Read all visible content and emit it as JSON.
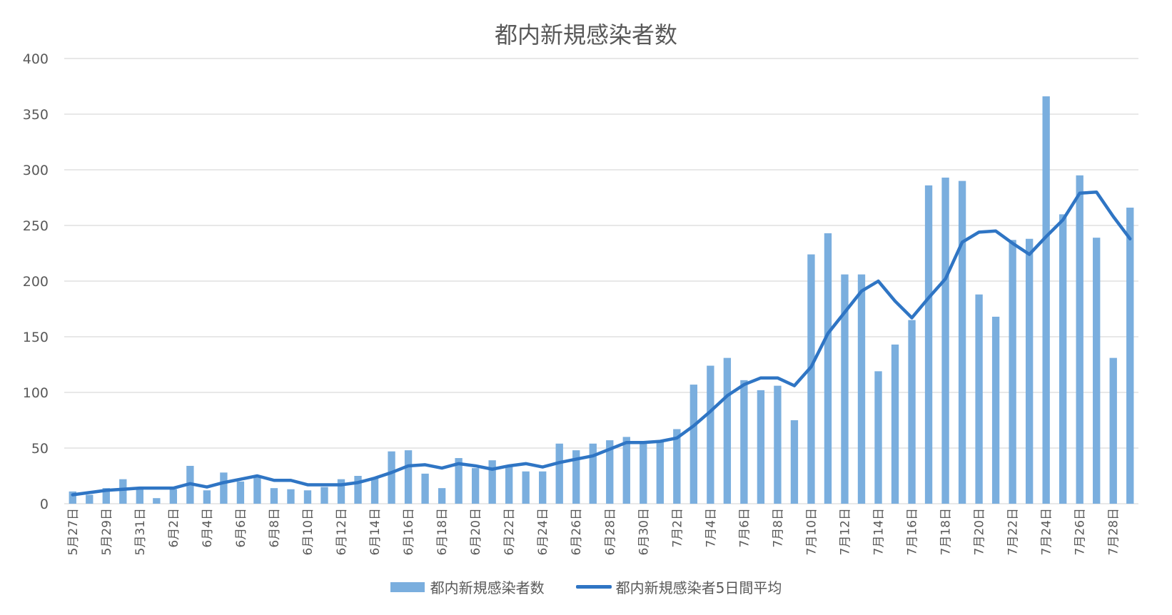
{
  "chart_data": {
    "type": "bar+line",
    "title": "都内新規感染者数",
    "ylim": [
      0,
      400
    ],
    "y_ticks": [
      0,
      50,
      100,
      150,
      200,
      250,
      300,
      350,
      400
    ],
    "grid": true,
    "legend_position": "bottom",
    "x_tick_labels": [
      "5月27日",
      "5月29日",
      "5月31日",
      "6月2日",
      "6月4日",
      "6月6日",
      "6月8日",
      "6月10日",
      "6月12日",
      "6月14日",
      "6月16日",
      "6月18日",
      "6月20日",
      "6月22日",
      "6月24日",
      "6月26日",
      "6月28日",
      "6月30日",
      "7月2日",
      "7月4日",
      "7月6日",
      "7月8日",
      "7月10日",
      "7月12日",
      "7月14日",
      "7月16日",
      "7月18日",
      "7月20日",
      "7月22日",
      "7月24日",
      "7月26日",
      "7月28日"
    ],
    "series": [
      {
        "name": "都内新規感染者数",
        "type": "bar",
        "color": "#7aaede",
        "values": [
          11,
          8,
          14,
          22,
          15,
          5,
          13,
          34,
          12,
          28,
          20,
          25,
          14,
          13,
          12,
          15,
          22,
          25,
          23,
          47,
          48,
          27,
          14,
          41,
          32,
          39,
          33,
          29,
          29,
          54,
          48,
          54,
          57,
          60,
          54,
          57,
          67,
          107,
          124,
          131,
          111,
          102,
          106,
          75,
          224,
          243,
          206,
          206,
          119,
          143,
          165,
          286,
          293,
          290,
          188,
          168,
          237,
          238,
          366,
          260,
          295,
          239,
          131,
          266
        ]
      },
      {
        "name": "都内新規感染者5日間平均",
        "type": "line",
        "color": "#2f75c4",
        "values": [
          8,
          10,
          12,
          13,
          14,
          14,
          14,
          18,
          15,
          19,
          22,
          25,
          21,
          21,
          17,
          17,
          17,
          19,
          23,
          28,
          34,
          35,
          32,
          36,
          34,
          31,
          34,
          36,
          33,
          37,
          40,
          43,
          49,
          55,
          55,
          56,
          59,
          70,
          83,
          97,
          107,
          113,
          113,
          106,
          123,
          153,
          172,
          191,
          200,
          182,
          167,
          185,
          202,
          235,
          244,
          245,
          234,
          224,
          240,
          255,
          279,
          280,
          258,
          238
        ]
      }
    ]
  }
}
